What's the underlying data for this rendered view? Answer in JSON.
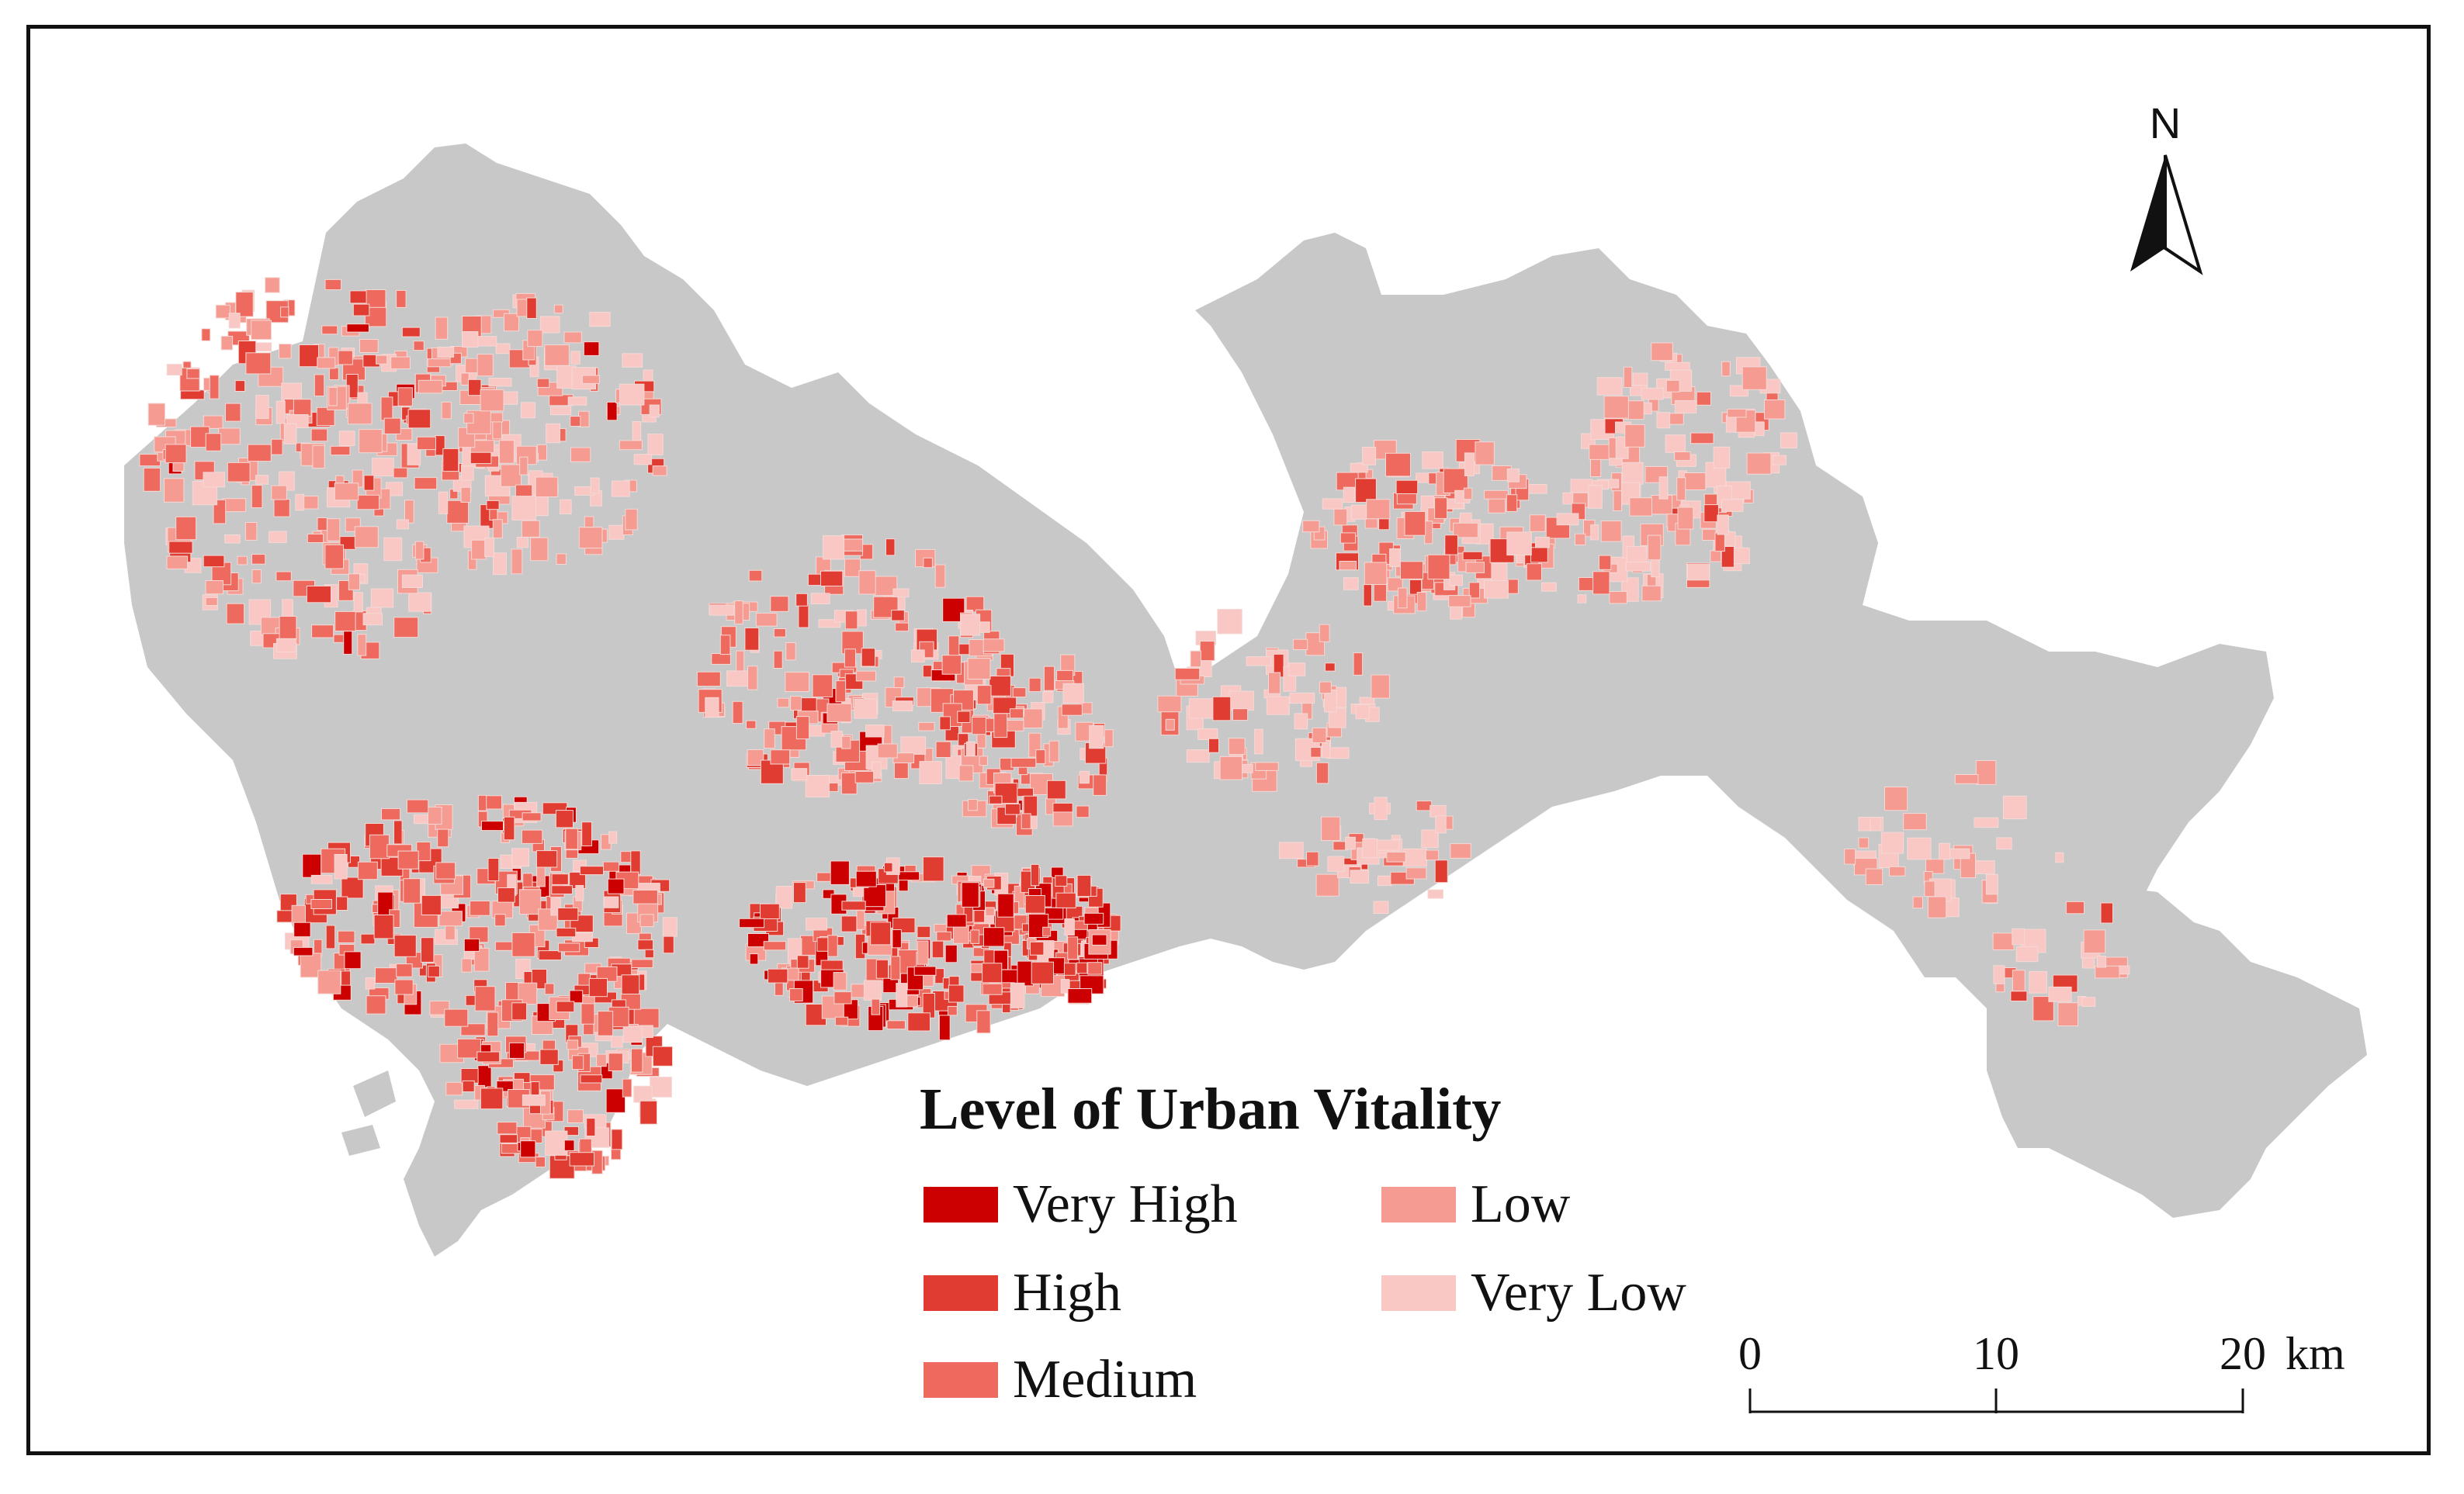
{
  "map": {
    "north_arrow_label": "N",
    "legend": {
      "title": "Level of Urban Vitality",
      "classes": [
        {
          "label": "Very High",
          "color": "#cc0000"
        },
        {
          "label": "High",
          "color": "#e03c31"
        },
        {
          "label": "Medium",
          "color": "#ee6a5e"
        },
        {
          "label": "Low",
          "color": "#f59b92"
        },
        {
          "label": "Very Low",
          "color": "#f9c8c4"
        }
      ]
    },
    "scale_bar": {
      "ticks": [
        "0",
        "10",
        "20"
      ],
      "unit": "km"
    },
    "colors": {
      "land": "#c8c8c8",
      "water": "#ffffff",
      "frame": "#111111"
    }
  }
}
